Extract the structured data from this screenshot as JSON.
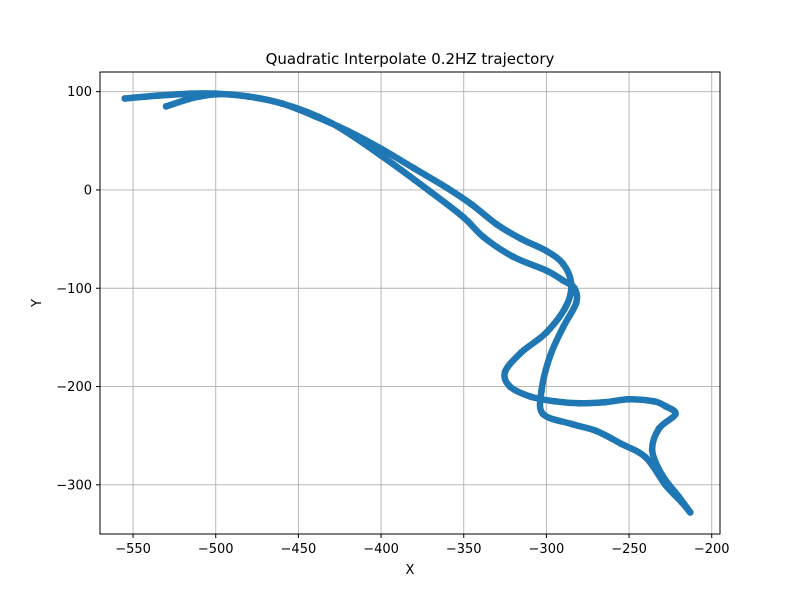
{
  "chart_data": {
    "type": "line",
    "title": "Quadratic Interpolate 0.2HZ trajectory",
    "xlabel": "X",
    "ylabel": "Y",
    "xlim": [
      -570,
      -195
    ],
    "ylim": [
      -350,
      120
    ],
    "xticks": [
      -550,
      -500,
      -450,
      -400,
      -350,
      -300,
      -250,
      -200
    ],
    "xtick_labels": [
      "−550",
      "−500",
      "−450",
      "−400",
      "−350",
      "−300",
      "−250",
      "−200"
    ],
    "yticks": [
      100,
      0,
      -100,
      -200,
      -300
    ],
    "ytick_labels": [
      "100",
      "0",
      "−100",
      "−200",
      "−300"
    ],
    "grid": true,
    "series_color": "#1f77b4",
    "series": [
      {
        "x": [
          -555,
          -535,
          -515,
          -500,
          -480,
          -460,
          -440,
          -420,
          -400,
          -380,
          -360,
          -345,
          -330,
          -315,
          -300,
          -290,
          -285,
          -288,
          -300,
          -315,
          -325,
          -322,
          -310,
          -295,
          -280,
          -265,
          -250,
          -235,
          -228,
          -222,
          -232,
          -236,
          -230,
          -220,
          -213,
          -218,
          -228,
          -240,
          -255,
          -270,
          -285,
          -302,
          -303,
          -298,
          -290,
          -282,
          -283,
          -290,
          -300,
          -320,
          -338,
          -350,
          -370,
          -400,
          -430,
          -460,
          -490,
          -510,
          -530
        ],
        "y": [
          93,
          96,
          98,
          98,
          95,
          88,
          75,
          60,
          42,
          22,
          2,
          -15,
          -35,
          -50,
          -62,
          -75,
          -95,
          -118,
          -145,
          -165,
          -185,
          -200,
          -210,
          -215,
          -217,
          -216,
          -213,
          -215,
          -220,
          -228,
          -243,
          -265,
          -290,
          -312,
          -328,
          -318,
          -300,
          -272,
          -258,
          -245,
          -238,
          -228,
          -205,
          -170,
          -140,
          -115,
          -100,
          -92,
          -82,
          -68,
          -48,
          -28,
          -2,
          35,
          68,
          88,
          97,
          95,
          85
        ]
      }
    ]
  }
}
